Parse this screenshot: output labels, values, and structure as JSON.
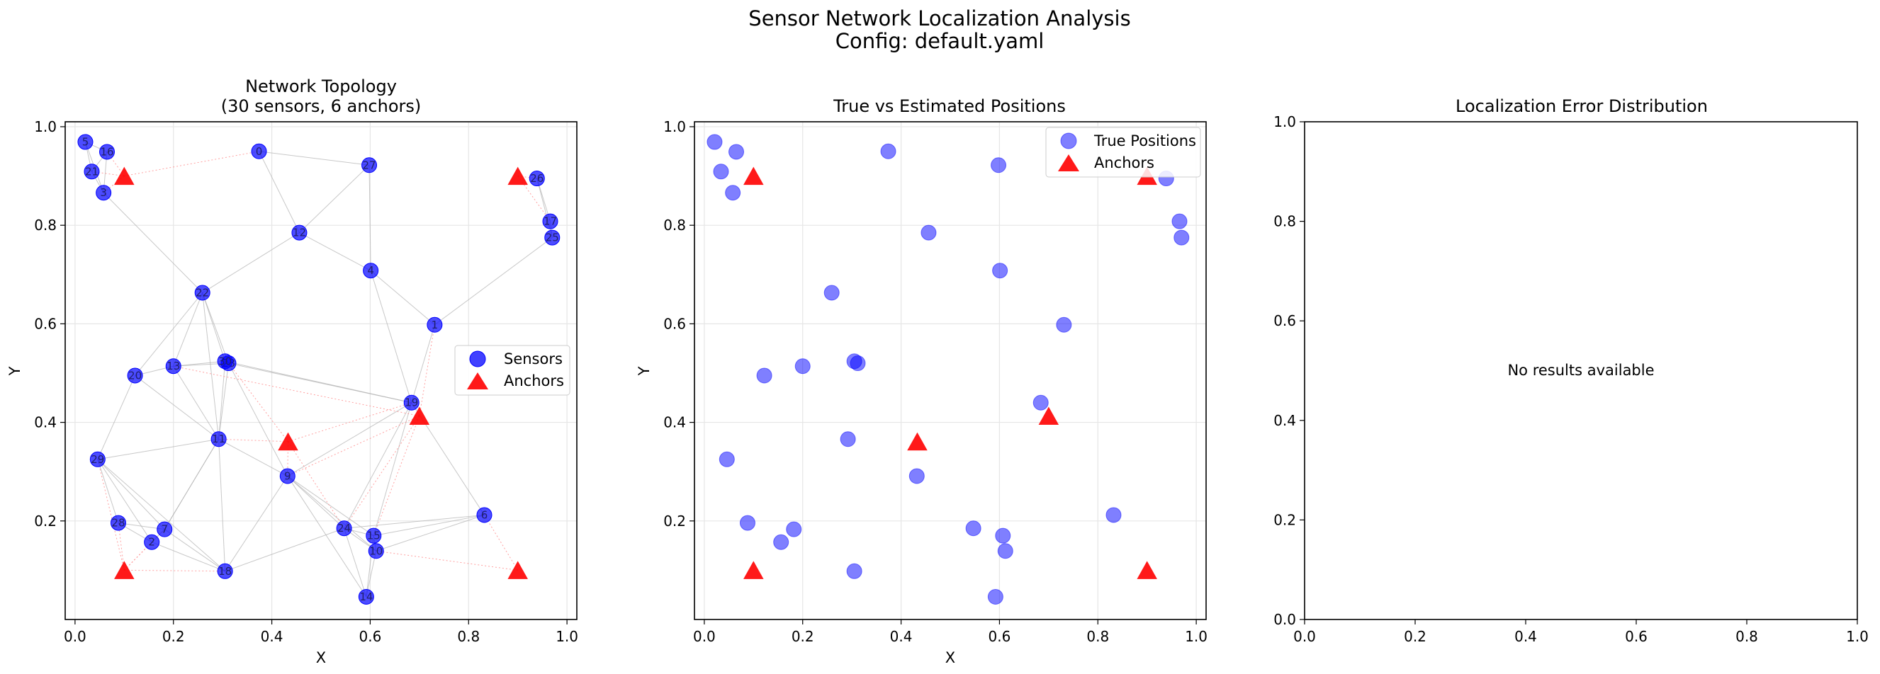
{
  "figure": {
    "suptitle_line1": "Sensor Network Localization Analysis",
    "suptitle_line2": "Config: default.yaml"
  },
  "colors": {
    "sensor": "#0000ff",
    "anchor": "#ff0000",
    "edge": "#b0b0b0",
    "anchor_edge": "#ff8888",
    "grid": "#e6e6e6"
  },
  "chart_data": [
    {
      "type": "scatter",
      "title_line1": "Network Topology",
      "title_line2": "(30 sensors, 6 anchors)",
      "xlabel": "X",
      "ylabel": "Y",
      "xlim": [
        -0.02,
        1.02
      ],
      "ylim": [
        0.0,
        1.01
      ],
      "xticks": [
        "0.0",
        "0.2",
        "0.4",
        "0.6",
        "0.8",
        "1.0"
      ],
      "yticks": [
        "0.2",
        "0.4",
        "0.6",
        "0.8",
        "1.0"
      ],
      "grid": true,
      "legend_position": "center-right",
      "legend": [
        "Sensors",
        "Anchors"
      ],
      "sensors": [
        {
          "id": "0",
          "x": 0.374,
          "y": 0.95
        },
        {
          "id": "1",
          "x": 0.731,
          "y": 0.598
        },
        {
          "id": "2",
          "x": 0.156,
          "y": 0.157
        },
        {
          "id": "3",
          "x": 0.058,
          "y": 0.866
        },
        {
          "id": "4",
          "x": 0.601,
          "y": 0.708
        },
        {
          "id": "5",
          "x": 0.021,
          "y": 0.969
        },
        {
          "id": "6",
          "x": 0.832,
          "y": 0.212
        },
        {
          "id": "7",
          "x": 0.182,
          "y": 0.183
        },
        {
          "id": "9",
          "x": 0.432,
          "y": 0.291
        },
        {
          "id": "10",
          "x": 0.612,
          "y": 0.139
        },
        {
          "id": "11",
          "x": 0.292,
          "y": 0.366
        },
        {
          "id": "12",
          "x": 0.456,
          "y": 0.785
        },
        {
          "id": "13",
          "x": 0.2,
          "y": 0.514
        },
        {
          "id": "14",
          "x": 0.592,
          "y": 0.046
        },
        {
          "id": "15",
          "x": 0.607,
          "y": 0.17
        },
        {
          "id": "16",
          "x": 0.065,
          "y": 0.949
        },
        {
          "id": "17",
          "x": 0.966,
          "y": 0.808
        },
        {
          "id": "18",
          "x": 0.305,
          "y": 0.098
        },
        {
          "id": "19",
          "x": 0.684,
          "y": 0.44
        },
        {
          "id": "20",
          "x": 0.122,
          "y": 0.495
        },
        {
          "id": "21",
          "x": 0.034,
          "y": 0.909
        },
        {
          "id": "22",
          "x": 0.259,
          "y": 0.663
        },
        {
          "id": "23",
          "x": 0.312,
          "y": 0.52
        },
        {
          "id": "24",
          "x": 0.547,
          "y": 0.185
        },
        {
          "id": "25",
          "x": 0.97,
          "y": 0.775
        },
        {
          "id": "26",
          "x": 0.939,
          "y": 0.895
        },
        {
          "id": "27",
          "x": 0.598,
          "y": 0.922
        },
        {
          "id": "28",
          "x": 0.088,
          "y": 0.196
        },
        {
          "id": "29",
          "x": 0.046,
          "y": 0.325
        },
        {
          "id": "30",
          "x": 0.305,
          "y": 0.524
        }
      ],
      "anchors": [
        {
          "x": 0.1,
          "y": 0.9
        },
        {
          "x": 0.9,
          "y": 0.9
        },
        {
          "x": 0.433,
          "y": 0.361
        },
        {
          "x": 0.7,
          "y": 0.413
        },
        {
          "x": 0.1,
          "y": 0.1
        },
        {
          "x": 0.9,
          "y": 0.1
        }
      ],
      "edges": [
        [
          "5",
          "16"
        ],
        [
          "5",
          "21"
        ],
        [
          "5",
          "3"
        ],
        [
          "16",
          "21"
        ],
        [
          "21",
          "3"
        ],
        [
          "16",
          "3"
        ],
        [
          "0",
          "12"
        ],
        [
          "0",
          "27"
        ],
        [
          "27",
          "12"
        ],
        [
          "27",
          "4"
        ],
        [
          "12",
          "4"
        ],
        [
          "12",
          "22"
        ],
        [
          "26",
          "17"
        ],
        [
          "26",
          "25"
        ],
        [
          "17",
          "25"
        ],
        [
          "25",
          "1"
        ],
        [
          "1",
          "4"
        ],
        [
          "1",
          "19"
        ],
        [
          "22",
          "13"
        ],
        [
          "22",
          "30"
        ],
        [
          "22",
          "23"
        ],
        [
          "22",
          "20"
        ],
        [
          "22",
          "11"
        ],
        [
          "13",
          "20"
        ],
        [
          "13",
          "30"
        ],
        [
          "13",
          "23"
        ],
        [
          "13",
          "11"
        ],
        [
          "30",
          "23"
        ],
        [
          "30",
          "11"
        ],
        [
          "23",
          "11"
        ],
        [
          "23",
          "9"
        ],
        [
          "30",
          "19"
        ],
        [
          "23",
          "19"
        ],
        [
          "20",
          "29"
        ],
        [
          "20",
          "11"
        ],
        [
          "29",
          "28"
        ],
        [
          "29",
          "2"
        ],
        [
          "29",
          "7"
        ],
        [
          "29",
          "11"
        ],
        [
          "29",
          "18"
        ],
        [
          "28",
          "2"
        ],
        [
          "28",
          "7"
        ],
        [
          "2",
          "7"
        ],
        [
          "7",
          "11"
        ],
        [
          "2",
          "18"
        ],
        [
          "7",
          "18"
        ],
        [
          "11",
          "9"
        ],
        [
          "11",
          "18"
        ],
        [
          "11",
          "7"
        ],
        [
          "9",
          "24"
        ],
        [
          "9",
          "15"
        ],
        [
          "9",
          "10"
        ],
        [
          "9",
          "14"
        ],
        [
          "9",
          "18"
        ],
        [
          "9",
          "19"
        ],
        [
          "24",
          "15"
        ],
        [
          "24",
          "10"
        ],
        [
          "24",
          "14"
        ],
        [
          "15",
          "10"
        ],
        [
          "15",
          "6"
        ],
        [
          "10",
          "6"
        ],
        [
          "14",
          "10"
        ],
        [
          "14",
          "15"
        ],
        [
          "24",
          "6"
        ],
        [
          "19",
          "24"
        ],
        [
          "19",
          "15"
        ],
        [
          "6",
          "19"
        ],
        [
          "4",
          "19"
        ],
        [
          "3",
          "22"
        ],
        [
          "18",
          "24"
        ]
      ],
      "anchor_edges": [
        [
          0,
          "16"
        ],
        [
          0,
          "3"
        ],
        [
          0,
          "0"
        ],
        [
          0,
          "21"
        ],
        [
          1,
          "26"
        ],
        [
          1,
          "17"
        ],
        [
          2,
          "11"
        ],
        [
          2,
          "9"
        ],
        [
          2,
          "23"
        ],
        [
          2,
          "19"
        ],
        [
          2,
          "24"
        ],
        [
          3,
          "19"
        ],
        [
          3,
          "1"
        ],
        [
          3,
          "15"
        ],
        [
          3,
          "24"
        ],
        [
          3,
          "9"
        ],
        [
          3,
          "13"
        ],
        [
          4,
          "28"
        ],
        [
          4,
          "2"
        ],
        [
          4,
          "7"
        ],
        [
          4,
          "18"
        ],
        [
          4,
          "29"
        ],
        [
          5,
          "6"
        ],
        [
          5,
          "10"
        ]
      ]
    },
    {
      "type": "scatter",
      "title": "True vs Estimated Positions",
      "xlabel": "X",
      "ylabel": "Y",
      "xlim": [
        -0.02,
        1.02
      ],
      "ylim": [
        0.0,
        1.01
      ],
      "xticks": [
        "0.0",
        "0.2",
        "0.4",
        "0.6",
        "0.8",
        "1.0"
      ],
      "yticks": [
        "0.2",
        "0.4",
        "0.6",
        "0.8",
        "1.0"
      ],
      "grid": true,
      "legend_position": "top-right",
      "legend": [
        "True Positions",
        "Anchors"
      ]
    },
    {
      "type": "scatter",
      "title": "Localization Error Distribution",
      "xlim": [
        0,
        1
      ],
      "ylim": [
        0,
        1
      ],
      "xticks": [
        "0.0",
        "0.2",
        "0.4",
        "0.6",
        "0.8",
        "1.0"
      ],
      "yticks": [
        "0.0",
        "0.2",
        "0.4",
        "0.6",
        "0.8",
        "1.0"
      ],
      "grid": false,
      "message": "No results available"
    }
  ]
}
